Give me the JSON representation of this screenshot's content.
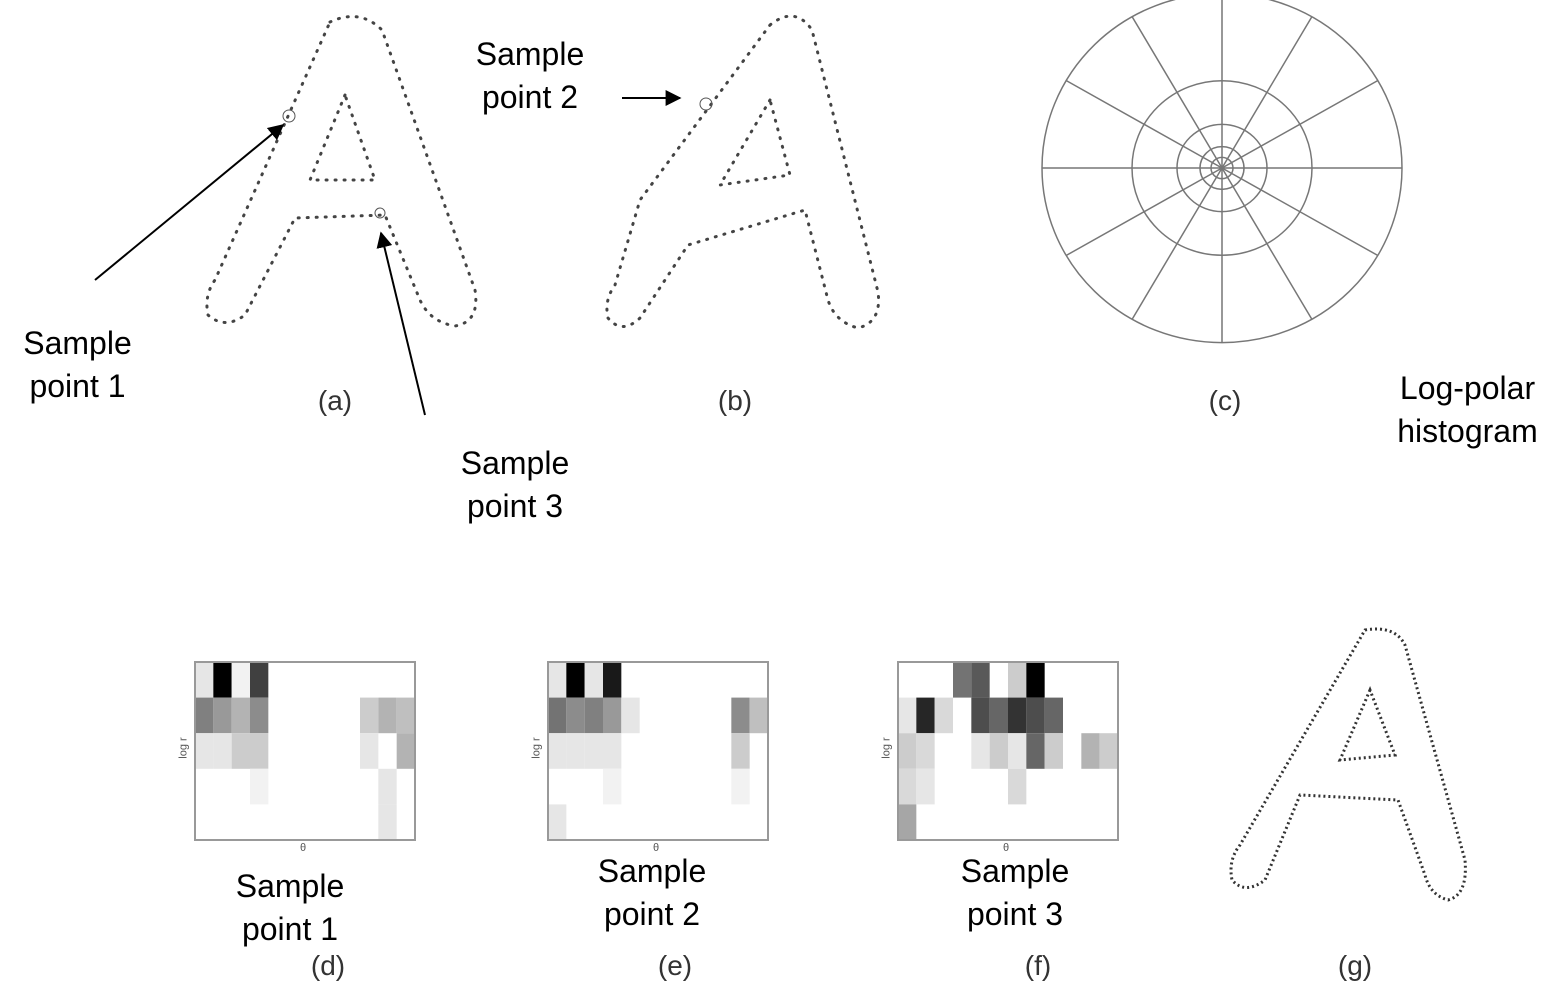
{
  "panels": [
    {
      "label": "(a)",
      "callouts": [
        "Sample point 1",
        "Sample point 3"
      ]
    },
    {
      "label": "(b)",
      "callouts": [
        "Sample point 2"
      ]
    },
    {
      "label": "(c)",
      "callouts": [
        "Log-polar histogram"
      ]
    },
    {
      "label": "(d)",
      "caption": "Sample point 1",
      "y_axis": "log r",
      "x_axis": "θ"
    },
    {
      "label": "(e)",
      "caption": "Sample point 2",
      "y_axis": "log r",
      "x_axis": "θ"
    },
    {
      "label": "(f)",
      "caption": "Sample point 3",
      "y_axis": "log r",
      "x_axis": "θ"
    },
    {
      "label": "(g)"
    }
  ]
}
